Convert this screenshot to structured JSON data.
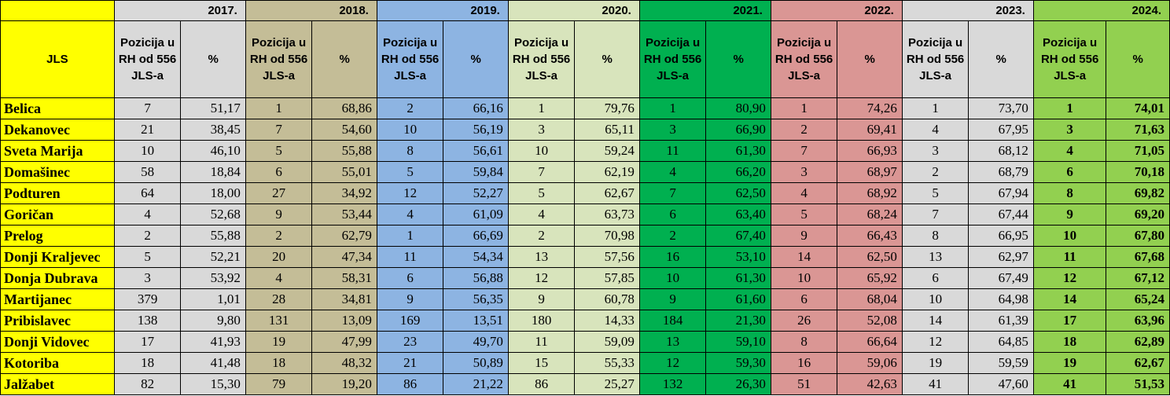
{
  "table": {
    "corner_label": "",
    "jls_header": "JLS",
    "years": [
      "2017.",
      "2018.",
      "2019.",
      "2020.",
      "2021.",
      "2022.",
      "2023.",
      "2024."
    ],
    "position_header": "Pozicija u RH od 556 JLS-a",
    "position_header_2024": "Pozicija u RH od 556 JLS-a",
    "percent_header": "%",
    "rows": [
      {
        "name": "Belica",
        "p": [
          "7",
          "1",
          "2",
          "1",
          "1",
          "1",
          "1",
          "1"
        ],
        "v": [
          "51,17",
          "68,86",
          "66,16",
          "79,76",
          "80,90",
          "74,26",
          "73,70",
          "74,01"
        ]
      },
      {
        "name": "Dekanovec",
        "p": [
          "21",
          "7",
          "10",
          "3",
          "3",
          "2",
          "4",
          "3"
        ],
        "v": [
          "38,45",
          "54,60",
          "56,19",
          "65,11",
          "66,90",
          "69,41",
          "67,95",
          "71,63"
        ]
      },
      {
        "name": "Sveta Marija",
        "p": [
          "10",
          "5",
          "8",
          "10",
          "11",
          "7",
          "3",
          "4"
        ],
        "v": [
          "46,10",
          "55,88",
          "56,61",
          "59,24",
          "61,30",
          "66,93",
          "68,12",
          "71,05"
        ]
      },
      {
        "name": "Domašinec",
        "p": [
          "58",
          "6",
          "5",
          "7",
          "4",
          "3",
          "2",
          "6"
        ],
        "v": [
          "18,84",
          "55,01",
          "59,84",
          "62,19",
          "66,20",
          "68,97",
          "68,79",
          "70,18"
        ]
      },
      {
        "name": "Podturen",
        "p": [
          "64",
          "27",
          "12",
          "5",
          "7",
          "4",
          "5",
          "8"
        ],
        "v": [
          "18,00",
          "34,92",
          "52,27",
          "62,67",
          "62,50",
          "68,92",
          "67,94",
          "69,82"
        ]
      },
      {
        "name": "Goričan",
        "p": [
          "4",
          "9",
          "4",
          "4",
          "6",
          "5",
          "7",
          "9"
        ],
        "v": [
          "52,68",
          "53,44",
          "61,09",
          "63,73",
          "63,40",
          "68,24",
          "67,44",
          "69,20"
        ]
      },
      {
        "name": "Prelog",
        "p": [
          "2",
          "2",
          "1",
          "2",
          "2",
          "9",
          "8",
          "10"
        ],
        "v": [
          "55,88",
          "62,79",
          "66,69",
          "70,98",
          "67,40",
          "66,43",
          "66,95",
          "67,80"
        ]
      },
      {
        "name": "Donji Kraljevec",
        "p": [
          "5",
          "20",
          "11",
          "13",
          "16",
          "14",
          "13",
          "11"
        ],
        "v": [
          "52,21",
          "47,34",
          "54,34",
          "57,56",
          "53,10",
          "62,50",
          "62,97",
          "67,68"
        ]
      },
      {
        "name": "Donja Dubrava",
        "p": [
          "3",
          "4",
          "6",
          "12",
          "10",
          "10",
          "6",
          "12"
        ],
        "v": [
          "53,92",
          "58,31",
          "56,88",
          "57,85",
          "61,30",
          "65,92",
          "67,49",
          "67,12"
        ]
      },
      {
        "name": "Martijanec",
        "p": [
          "379",
          "28",
          "9",
          "9",
          "9",
          "6",
          "10",
          "14"
        ],
        "v": [
          "1,01",
          "34,81",
          "56,35",
          "60,78",
          "61,60",
          "68,04",
          "64,98",
          "65,24"
        ]
      },
      {
        "name": "Pribislavec",
        "p": [
          "138",
          "131",
          "169",
          "180",
          "184",
          "26",
          "14",
          "17"
        ],
        "v": [
          "9,80",
          "13,09",
          "13,51",
          "14,33",
          "21,30",
          "52,08",
          "61,39",
          "63,96"
        ]
      },
      {
        "name": "Donji Vidovec",
        "p": [
          "17",
          "19",
          "23",
          "11",
          "13",
          "8",
          "12",
          "18"
        ],
        "v": [
          "41,93",
          "47,99",
          "49,70",
          "59,09",
          "59,10",
          "66,64",
          "64,85",
          "62,89"
        ]
      },
      {
        "name": "Kotoriba",
        "p": [
          "18",
          "18",
          "21",
          "15",
          "12",
          "16",
          "19",
          "19"
        ],
        "v": [
          "41,48",
          "48,32",
          "50,89",
          "55,33",
          "59,30",
          "59,06",
          "59,59",
          "62,67"
        ]
      },
      {
        "name": "Jalžabet",
        "p": [
          "82",
          "79",
          "86",
          "86",
          "132",
          "51",
          "41",
          "41"
        ],
        "v": [
          "15,30",
          "19,20",
          "21,22",
          "25,27",
          "26,30",
          "42,63",
          "47,60",
          "51,53"
        ]
      }
    ]
  },
  "colors": {
    "name_column": "#ffff00",
    "2017": "#d9d9d9",
    "2018": "#c4bd97",
    "2019": "#8db4e2",
    "2020": "#d8e4bc",
    "2021": "#00b050",
    "2022": "#da9694",
    "2023": "#d9d9d9",
    "2024": "#92d050"
  }
}
